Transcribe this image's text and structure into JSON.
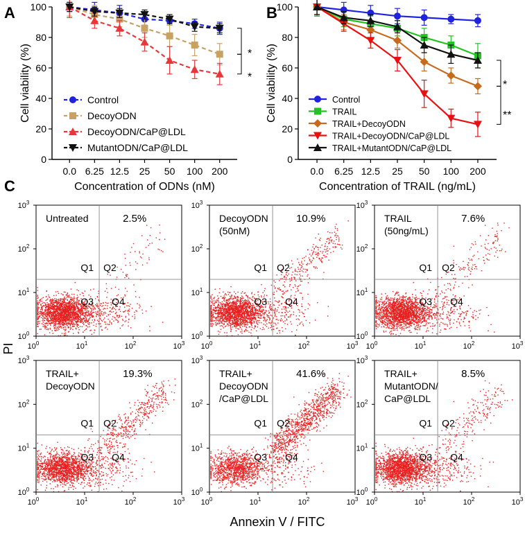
{
  "panels": {
    "a_letter": "A",
    "b_letter": "B",
    "c_letter": "C"
  },
  "significance": {
    "a_top": "*",
    "a_bottom": "*",
    "b_top": "*",
    "b_bottom": "**"
  },
  "colors": {
    "blue": "#1f23e0",
    "tan": "#c8a165",
    "red": "#e8373b",
    "black": "#111111",
    "green": "#22c222",
    "orange": "#c86a1c",
    "brightred": "#e81010",
    "dot": "#e82020"
  },
  "chart_data": [
    {
      "type": "line",
      "id": "A",
      "title": "",
      "xlabel": "Concentration of ODNs (nM)",
      "ylabel": "Cell viability (%)",
      "categories": [
        "0.0",
        "6.25",
        "12.5",
        "25",
        "50",
        "100",
        "200"
      ],
      "ylim": [
        0,
        100
      ],
      "yticks": [
        0,
        20,
        40,
        60,
        80,
        100
      ],
      "series": [
        {
          "name": "Control",
          "color": "#1f23e0",
          "marker": "circle",
          "dash": true,
          "values": [
            100,
            98,
            96,
            92,
            91,
            89,
            86
          ],
          "errors": [
            3,
            5,
            5,
            4,
            3,
            3,
            4
          ]
        },
        {
          "name": "DecoyODN",
          "color": "#c8a165",
          "marker": "square",
          "dash": true,
          "values": [
            100,
            95,
            92,
            86,
            81,
            75,
            69
          ],
          "errors": [
            6,
            6,
            5,
            6,
            7,
            7,
            7
          ]
        },
        {
          "name": "DecoyODN/CaP@LDL",
          "color": "#e8373b",
          "marker": "triangle",
          "dash": true,
          "values": [
            100,
            91,
            86,
            77,
            65,
            59,
            56
          ],
          "errors": [
            7,
            5,
            5,
            6,
            9,
            6,
            7
          ]
        },
        {
          "name": "MutantODN/CaP@LDL",
          "color": "#111111",
          "marker": "triangle-down",
          "dash": true,
          "values": [
            100,
            97,
            96,
            95,
            92,
            87,
            86
          ],
          "errors": [
            3,
            3,
            3,
            3,
            3,
            3,
            3
          ]
        }
      ]
    },
    {
      "type": "line",
      "id": "B",
      "title": "",
      "xlabel": "Concentration of TRAIL (ng/mL)",
      "ylabel": "Cell viability (%)",
      "categories": [
        "0.0",
        "6.25",
        "12.5",
        "25",
        "50",
        "100",
        "200"
      ],
      "ylim": [
        0,
        100
      ],
      "yticks": [
        0,
        20,
        40,
        60,
        80,
        100
      ],
      "series": [
        {
          "name": "Control",
          "color": "#1f23e0",
          "marker": "circle",
          "dash": false,
          "values": [
            100,
            98,
            96,
            94,
            93,
            92,
            91
          ],
          "errors": [
            6,
            5,
            5,
            5,
            5,
            3,
            4
          ]
        },
        {
          "name": "TRAIL",
          "color": "#22c222",
          "marker": "square",
          "dash": false,
          "values": [
            100,
            92,
            89,
            86,
            80,
            75,
            68
          ],
          "errors": [
            6,
            5,
            5,
            5,
            6,
            6,
            8
          ]
        },
        {
          "name": "TRAIL+DecoyODN",
          "color": "#c86a1c",
          "marker": "diamond",
          "dash": false,
          "values": [
            100,
            90,
            85,
            78,
            64,
            55,
            48
          ],
          "errors": [
            5,
            5,
            5,
            5,
            6,
            5,
            5
          ]
        },
        {
          "name": "TRAIL+DecoyODN/CaP@LDL",
          "color": "#e81010",
          "marker": "triangle-down",
          "dash": false,
          "values": [
            100,
            89,
            78,
            65,
            43,
            27,
            23
          ],
          "errors": [
            5,
            5,
            5,
            7,
            9,
            6,
            8
          ]
        },
        {
          "name": "TRAIL+MutantODN/CaP@LDL",
          "color": "#111111",
          "marker": "triangle",
          "dash": false,
          "values": [
            100,
            93,
            91,
            87,
            75,
            69,
            65
          ],
          "errors": [
            5,
            4,
            4,
            4,
            5,
            6,
            5
          ]
        }
      ]
    },
    {
      "type": "scatter",
      "id": "C",
      "xlabel": "Annexin V / FITC",
      "ylabel": "PI",
      "axis_scale": "log",
      "axis_range": [
        1,
        1000
      ],
      "tick_bases": [
        "10",
        "10",
        "10",
        "10"
      ],
      "tick_exponents": [
        "0",
        "1",
        "2",
        "3"
      ],
      "gate_value": [
        20,
        20
      ],
      "quadrant_labels": [
        "Q1",
        "Q2",
        "Q3",
        "Q4"
      ],
      "plots": [
        {
          "label_lines": [
            "Untreated"
          ],
          "percent": "2.5%",
          "apoptosis": 2.5
        },
        {
          "label_lines": [
            "DecoyODN",
            "(50nM)"
          ],
          "percent": "10.9%",
          "apoptosis": 10.9
        },
        {
          "label_lines": [
            "TRAIL",
            "(50ng/mL)"
          ],
          "percent": "7.6%",
          "apoptosis": 7.6
        },
        {
          "label_lines": [
            "TRAIL+",
            "DecoyODN"
          ],
          "percent": "19.3%",
          "apoptosis": 19.3
        },
        {
          "label_lines": [
            "TRAIL+",
            "DecoyODN",
            "/CaP@LDL"
          ],
          "percent": "41.6%",
          "apoptosis": 41.6
        },
        {
          "label_lines": [
            "TRAIL+",
            "MutantODN/",
            "CaP@LDL"
          ],
          "percent": "8.5%",
          "apoptosis": 8.5
        }
      ]
    }
  ]
}
